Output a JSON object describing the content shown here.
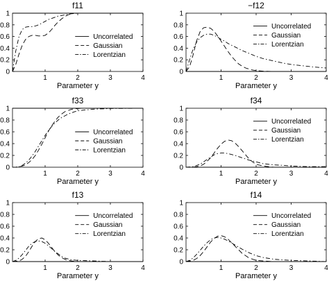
{
  "legend_entries": [
    "Uncorrelated",
    "Gaussian",
    "Lorentzian"
  ],
  "chart_data": [
    {
      "type": "line",
      "title": "f11",
      "xlabel": "",
      "ylabel": "",
      "xlim": [
        0,
        4
      ],
      "ylim": [
        0,
        1
      ],
      "xticks": [
        1,
        2,
        3,
        4
      ],
      "yticks": [
        0,
        0.2,
        0.4,
        0.6,
        0.8,
        1
      ],
      "legend_placement": "lower-right",
      "series": [
        {
          "name": "Uncorrelated",
          "style": "solid",
          "x": [
            0,
            2.2,
            3,
            4
          ],
          "y": [
            1,
            1,
            1,
            1
          ]
        },
        {
          "name": "Gaussian",
          "style": "dashed",
          "x": [
            0,
            0.1,
            0.2,
            0.3,
            0.4,
            0.5,
            0.6,
            0.7,
            0.8,
            0.9,
            1.0,
            1.1,
            1.2,
            1.3,
            1.4,
            1.5,
            1.6,
            1.7,
            1.8,
            1.9,
            2.0,
            2.1,
            2.2,
            2.3,
            2.5,
            3,
            4
          ],
          "y": [
            0,
            0.12,
            0.3,
            0.45,
            0.55,
            0.6,
            0.62,
            0.62,
            0.61,
            0.61,
            0.62,
            0.66,
            0.72,
            0.79,
            0.85,
            0.9,
            0.94,
            0.97,
            0.99,
            1.0,
            1.0,
            1.0,
            1.0,
            1.0,
            1.0,
            1.0,
            1.0
          ]
        },
        {
          "name": "Lorentzian",
          "style": "dashdot",
          "x": [
            0,
            0.1,
            0.2,
            0.3,
            0.4,
            0.5,
            0.6,
            0.7,
            0.8,
            0.9,
            1.0,
            1.1,
            1.2,
            1.3,
            1.4,
            1.5,
            1.6,
            1.7,
            1.8,
            1.9,
            2.0,
            2.2,
            2.5,
            3,
            4
          ],
          "y": [
            0,
            0.35,
            0.6,
            0.72,
            0.76,
            0.77,
            0.77,
            0.78,
            0.8,
            0.83,
            0.86,
            0.89,
            0.91,
            0.93,
            0.95,
            0.96,
            0.97,
            0.98,
            0.99,
            0.995,
            1.0,
            1.0,
            1.0,
            1.0,
            1.0
          ]
        }
      ]
    },
    {
      "type": "line",
      "title": "−f12",
      "xlabel": "",
      "ylabel": "",
      "xlim": [
        0,
        4
      ],
      "ylim": [
        0,
        1
      ],
      "xticks": [
        1,
        2,
        3,
        4
      ],
      "yticks": [
        0,
        0.2,
        0.4,
        0.6,
        0.8,
        1
      ],
      "legend_placement": "upper-right",
      "series": [
        {
          "name": "Uncorrelated",
          "style": "solid",
          "x": [
            0,
            4
          ],
          "y": [
            0,
            0
          ]
        },
        {
          "name": "Gaussian",
          "style": "dashed",
          "x": [
            0,
            0.1,
            0.2,
            0.3,
            0.4,
            0.5,
            0.6,
            0.7,
            0.8,
            0.9,
            1.0,
            1.1,
            1.2,
            1.3,
            1.4,
            1.5,
            1.6,
            1.7,
            1.8,
            1.9,
            2.0,
            2.2,
            2.5,
            3,
            4
          ],
          "y": [
            0,
            0.08,
            0.28,
            0.52,
            0.68,
            0.75,
            0.76,
            0.74,
            0.69,
            0.61,
            0.52,
            0.43,
            0.34,
            0.26,
            0.19,
            0.13,
            0.09,
            0.06,
            0.04,
            0.025,
            0.015,
            0.005,
            0.0,
            0.0,
            0.0
          ]
        },
        {
          "name": "Lorentzian",
          "style": "dashdot",
          "x": [
            0,
            0.1,
            0.2,
            0.3,
            0.4,
            0.5,
            0.6,
            0.7,
            0.8,
            0.9,
            1.0,
            1.1,
            1.2,
            1.4,
            1.6,
            1.8,
            2.0,
            2.2,
            2.5,
            2.8,
            3.0,
            3.3,
            3.6,
            4
          ],
          "y": [
            0,
            0.2,
            0.38,
            0.5,
            0.58,
            0.62,
            0.64,
            0.64,
            0.62,
            0.59,
            0.55,
            0.52,
            0.48,
            0.42,
            0.36,
            0.31,
            0.26,
            0.22,
            0.18,
            0.14,
            0.12,
            0.1,
            0.08,
            0.06
          ]
        }
      ]
    },
    {
      "type": "line",
      "title": "f33",
      "xlabel": "",
      "ylabel": "",
      "xlim": [
        0,
        4
      ],
      "ylim": [
        0,
        1
      ],
      "xticks": [
        1,
        2,
        3,
        4
      ],
      "yticks": [
        0,
        0.2,
        0.4,
        0.6,
        0.8,
        1
      ],
      "legend_placement": "lower-right",
      "series": [
        {
          "name": "Uncorrelated",
          "style": "solid",
          "x": [
            0,
            4
          ],
          "y": [
            1,
            1
          ]
        },
        {
          "name": "Gaussian",
          "style": "dashed",
          "x": [
            0,
            0.1,
            0.2,
            0.3,
            0.4,
            0.5,
            0.6,
            0.7,
            0.8,
            0.9,
            1.0,
            1.1,
            1.2,
            1.3,
            1.4,
            1.5,
            1.6,
            1.7,
            1.8,
            1.9,
            2.0,
            2.2,
            2.5,
            3,
            4
          ],
          "y": [
            0,
            0.0,
            0.01,
            0.02,
            0.04,
            0.08,
            0.13,
            0.2,
            0.29,
            0.39,
            0.5,
            0.61,
            0.7,
            0.78,
            0.85,
            0.9,
            0.94,
            0.96,
            0.98,
            0.99,
            0.995,
            1.0,
            1.0,
            1.0,
            1.0
          ]
        },
        {
          "name": "Lorentzian",
          "style": "dashdot",
          "x": [
            0,
            0.1,
            0.2,
            0.3,
            0.4,
            0.5,
            0.6,
            0.7,
            0.8,
            0.9,
            1.0,
            1.1,
            1.2,
            1.3,
            1.4,
            1.5,
            1.6,
            1.7,
            1.8,
            1.9,
            2.0,
            2.2,
            2.5,
            3,
            4
          ],
          "y": [
            0,
            0.0,
            0.01,
            0.03,
            0.07,
            0.12,
            0.19,
            0.27,
            0.36,
            0.45,
            0.54,
            0.62,
            0.69,
            0.75,
            0.8,
            0.84,
            0.87,
            0.9,
            0.92,
            0.94,
            0.955,
            0.97,
            0.985,
            0.995,
            1.0
          ]
        }
      ]
    },
    {
      "type": "line",
      "title": "f34",
      "xlabel": "",
      "ylabel": "",
      "xlim": [
        0,
        4
      ],
      "ylim": [
        0,
        1
      ],
      "xticks": [
        1,
        2,
        3,
        4
      ],
      "yticks": [
        0,
        0.2,
        0.4,
        0.6,
        0.8,
        1
      ],
      "legend_placement": "upper-right",
      "series": [
        {
          "name": "Uncorrelated",
          "style": "solid",
          "x": [
            0,
            4
          ],
          "y": [
            0,
            0
          ]
        },
        {
          "name": "Gaussian",
          "style": "dashed",
          "x": [
            0,
            0.2,
            0.4,
            0.5,
            0.6,
            0.7,
            0.8,
            0.9,
            1.0,
            1.1,
            1.2,
            1.3,
            1.4,
            1.5,
            1.6,
            1.7,
            1.8,
            1.9,
            2.0,
            2.2,
            2.5,
            3,
            4
          ],
          "y": [
            0,
            0.0,
            0.02,
            0.05,
            0.1,
            0.16,
            0.24,
            0.32,
            0.39,
            0.44,
            0.46,
            0.45,
            0.41,
            0.35,
            0.28,
            0.21,
            0.14,
            0.09,
            0.05,
            0.02,
            0.0,
            0.0,
            0.0
          ]
        },
        {
          "name": "Lorentzian",
          "style": "dashdot",
          "x": [
            0,
            0.2,
            0.4,
            0.5,
            0.6,
            0.7,
            0.8,
            0.9,
            1.0,
            1.1,
            1.2,
            1.4,
            1.6,
            1.8,
            2.0,
            2.2,
            2.5,
            2.8,
            3.0,
            3.5,
            4
          ],
          "y": [
            0,
            0.01,
            0.05,
            0.09,
            0.13,
            0.17,
            0.21,
            0.23,
            0.24,
            0.24,
            0.23,
            0.2,
            0.16,
            0.12,
            0.09,
            0.06,
            0.04,
            0.03,
            0.02,
            0.01,
            0.01
          ]
        }
      ]
    },
    {
      "type": "line",
      "title": "f13",
      "xlabel": "",
      "ylabel": "",
      "xlim": [
        0,
        4
      ],
      "ylim": [
        0,
        1
      ],
      "xticks": [
        1,
        2,
        3,
        4
      ],
      "yticks": [
        0,
        0.2,
        0.4,
        0.6,
        0.8,
        1
      ],
      "legend_placement": "upper-right",
      "series": [
        {
          "name": "Uncorrelated",
          "style": "solid",
          "x": [
            0,
            4
          ],
          "y": [
            0,
            0
          ]
        },
        {
          "name": "Gaussian",
          "style": "dashed",
          "x": [
            0,
            0.2,
            0.3,
            0.4,
            0.5,
            0.6,
            0.7,
            0.8,
            0.9,
            1.0,
            1.1,
            1.2,
            1.3,
            1.4,
            1.5,
            1.6,
            1.7,
            1.8,
            2.0,
            2.5,
            3,
            4
          ],
          "y": [
            0,
            0.01,
            0.04,
            0.09,
            0.17,
            0.26,
            0.34,
            0.39,
            0.4,
            0.37,
            0.31,
            0.24,
            0.17,
            0.11,
            0.07,
            0.04,
            0.02,
            0.01,
            0.0,
            0.0,
            0.0,
            0.0
          ]
        },
        {
          "name": "Lorentzian",
          "style": "dashdot",
          "x": [
            0,
            0.1,
            0.2,
            0.3,
            0.4,
            0.5,
            0.6,
            0.7,
            0.8,
            0.9,
            1.0,
            1.1,
            1.2,
            1.3,
            1.4,
            1.5,
            1.6,
            1.8,
            2.0,
            2.5,
            3,
            4
          ],
          "y": [
            0,
            0.02,
            0.06,
            0.12,
            0.19,
            0.26,
            0.31,
            0.34,
            0.35,
            0.34,
            0.31,
            0.27,
            0.22,
            0.17,
            0.13,
            0.09,
            0.06,
            0.03,
            0.02,
            0.01,
            0.0,
            0.0
          ]
        }
      ]
    },
    {
      "type": "line",
      "title": "f14",
      "xlabel": "",
      "ylabel": "",
      "xlim": [
        0,
        4
      ],
      "ylim": [
        0,
        1
      ],
      "xticks": [
        1,
        2,
        3,
        4
      ],
      "yticks": [
        0,
        0.2,
        0.4,
        0.6,
        0.8,
        1
      ],
      "legend_placement": "upper-right",
      "series": [
        {
          "name": "Uncorrelated",
          "style": "solid",
          "x": [
            0,
            4
          ],
          "y": [
            0,
            0
          ]
        },
        {
          "name": "Gaussian",
          "style": "dashed",
          "x": [
            0,
            0.2,
            0.3,
            0.4,
            0.5,
            0.6,
            0.7,
            0.8,
            0.9,
            1.0,
            1.1,
            1.2,
            1.3,
            1.4,
            1.5,
            1.6,
            1.7,
            1.8,
            1.9,
            2.0,
            2.2,
            2.5,
            3,
            4
          ],
          "y": [
            0,
            0.02,
            0.05,
            0.1,
            0.17,
            0.25,
            0.33,
            0.39,
            0.43,
            0.44,
            0.42,
            0.38,
            0.32,
            0.26,
            0.2,
            0.14,
            0.1,
            0.06,
            0.04,
            0.02,
            0.01,
            0.0,
            0.0,
            0.0
          ]
        },
        {
          "name": "Lorentzian",
          "style": "dashdot",
          "x": [
            0,
            0.1,
            0.2,
            0.3,
            0.4,
            0.5,
            0.6,
            0.7,
            0.8,
            0.9,
            1.0,
            1.1,
            1.2,
            1.4,
            1.6,
            1.8,
            2.0,
            2.2,
            2.5,
            3,
            3.5,
            4
          ],
          "y": [
            0,
            0.02,
            0.06,
            0.12,
            0.19,
            0.26,
            0.32,
            0.37,
            0.4,
            0.41,
            0.4,
            0.38,
            0.35,
            0.28,
            0.21,
            0.15,
            0.1,
            0.07,
            0.04,
            0.02,
            0.01,
            0.0
          ]
        }
      ]
    }
  ],
  "xlabel_shared": "Parameter y"
}
